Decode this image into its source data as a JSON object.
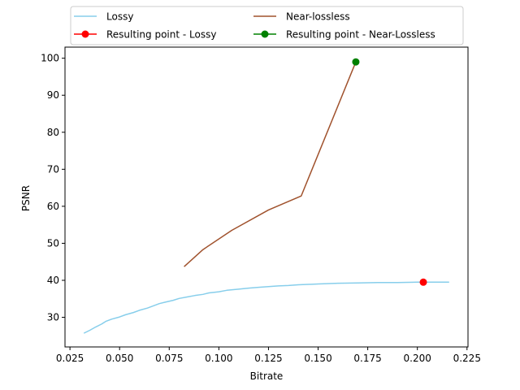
{
  "chart_data": {
    "type": "line",
    "xlabel": "Bitrate",
    "ylabel": "PSNR",
    "xlim": [
      0.0225,
      0.2255
    ],
    "ylim": [
      22,
      103
    ],
    "xticks": [
      0.025,
      0.05,
      0.075,
      0.1,
      0.125,
      0.15,
      0.175,
      0.2,
      0.225
    ],
    "xtick_labels": [
      "0.025",
      "0.050",
      "0.075",
      "0.100",
      "0.125",
      "0.150",
      "0.175",
      "0.200",
      "0.225"
    ],
    "yticks": [
      30,
      40,
      50,
      60,
      70,
      80,
      90,
      100
    ],
    "ytick_labels": [
      "30",
      "40",
      "50",
      "60",
      "70",
      "80",
      "90",
      "100"
    ],
    "grid": false,
    "legend_position": "top-center",
    "legend_columns": 2,
    "series": [
      {
        "name": "Lossy",
        "kind": "line",
        "color": "#87ceeb",
        "x": [
          0.032,
          0.035,
          0.038,
          0.041,
          0.043,
          0.046,
          0.05,
          0.053,
          0.057,
          0.06,
          0.064,
          0.067,
          0.07,
          0.073,
          0.077,
          0.08,
          0.084,
          0.088,
          0.092,
          0.095,
          0.1,
          0.104,
          0.11,
          0.115,
          0.12,
          0.125,
          0.13,
          0.135,
          0.14,
          0.15,
          0.16,
          0.17,
          0.18,
          0.19,
          0.2,
          0.21,
          0.216
        ],
        "y": [
          25.7,
          26.5,
          27.4,
          28.2,
          28.9,
          29.5,
          30.1,
          30.7,
          31.3,
          31.9,
          32.5,
          33.1,
          33.7,
          34.1,
          34.6,
          35.1,
          35.5,
          35.9,
          36.2,
          36.6,
          36.9,
          37.3,
          37.6,
          37.9,
          38.1,
          38.3,
          38.5,
          38.6,
          38.8,
          39.0,
          39.2,
          39.3,
          39.4,
          39.4,
          39.5,
          39.5,
          39.5
        ]
      },
      {
        "name": "Near-lossless",
        "kind": "line",
        "color": "#a0522d",
        "x": [
          0.0825,
          0.092,
          0.1065,
          0.125,
          0.1415,
          0.169
        ],
        "y": [
          43.7,
          48.3,
          53.5,
          59.0,
          62.8,
          99.0
        ]
      },
      {
        "name": "Resulting point - Lossy",
        "kind": "point",
        "color": "#ff0000",
        "x": [
          0.203
        ],
        "y": [
          39.5
        ]
      },
      {
        "name": "Resulting point - Near-Lossless",
        "kind": "point",
        "color": "#008000",
        "x": [
          0.169
        ],
        "y": [
          99.0
        ]
      }
    ]
  }
}
